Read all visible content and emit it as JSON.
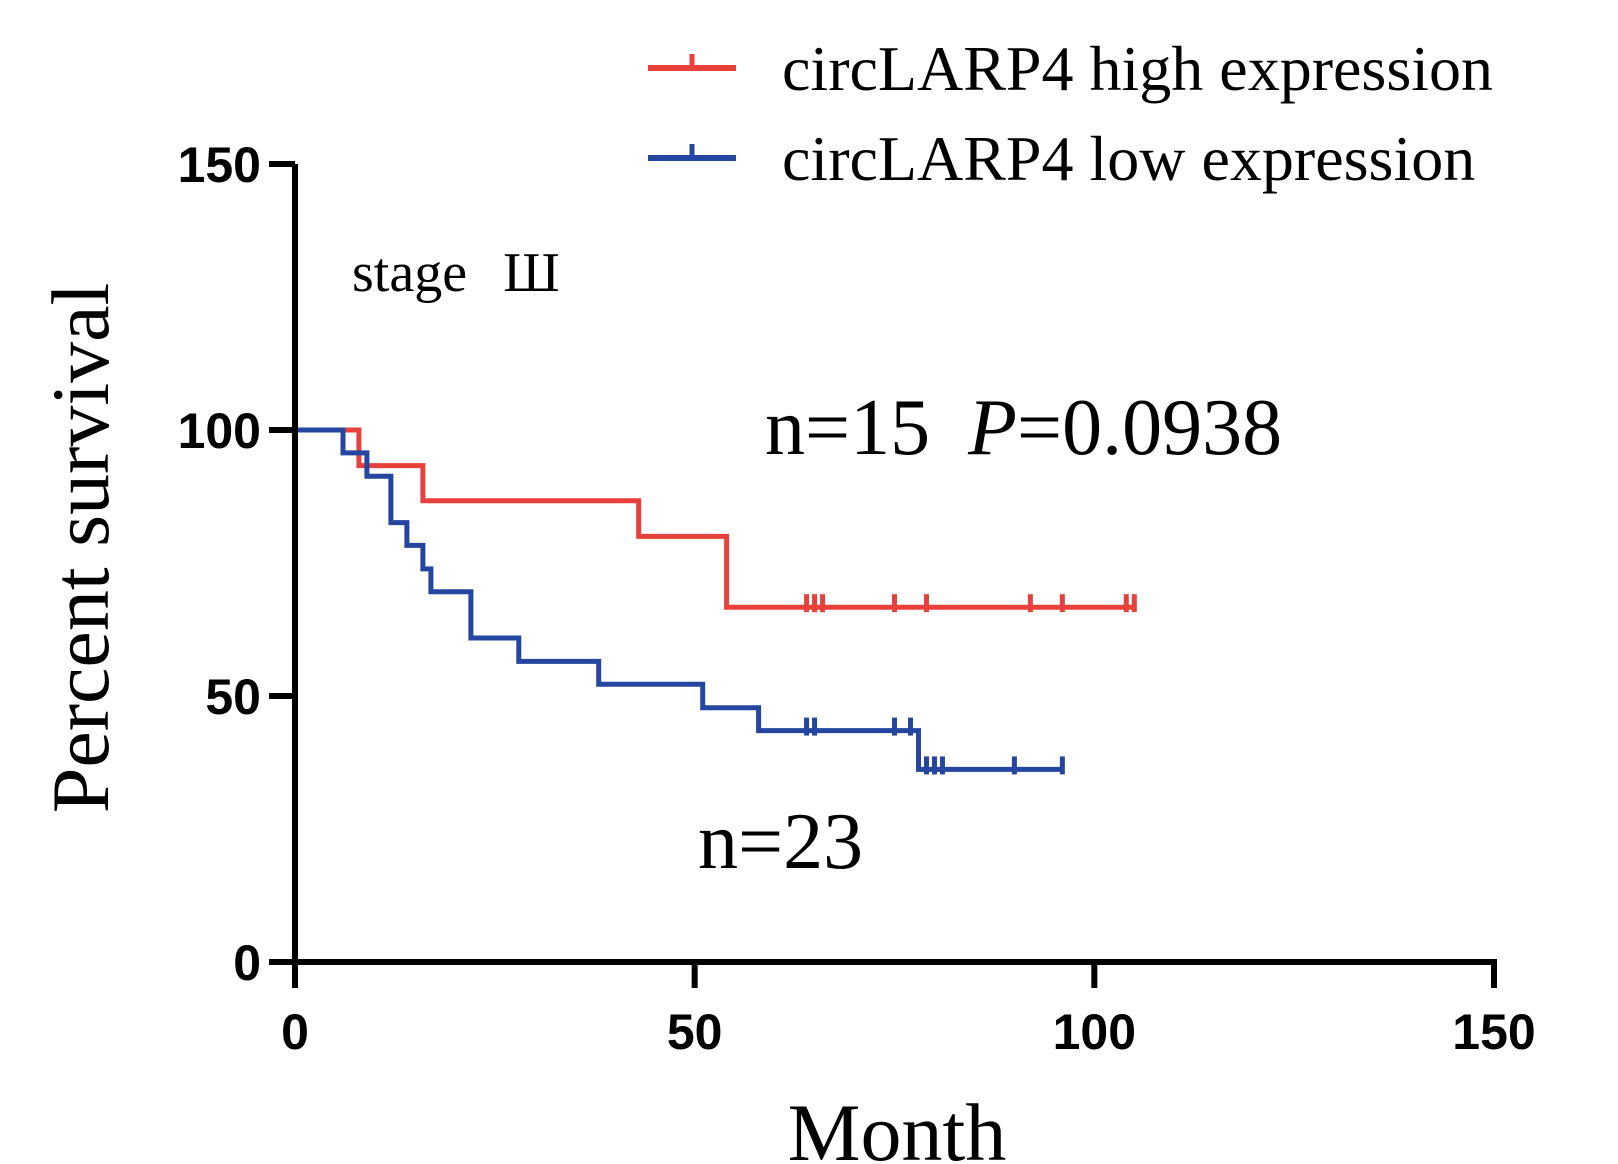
{
  "chart_data": {
    "type": "line",
    "xlabel": "Month",
    "ylabel": "Percent survival",
    "xlim": [
      0,
      150
    ],
    "ylim": [
      0,
      150
    ],
    "xticks": [
      0,
      50,
      100,
      150
    ],
    "yticks": [
      0,
      50,
      100,
      150
    ],
    "grid": false,
    "legend_position": "top-right",
    "annotations": {
      "stage": "stage",
      "stage_numeral": "Ш",
      "n_high": "n=15",
      "p_label": "P",
      "p_value": "=0.0938",
      "n_low": "n=23"
    },
    "series": [
      {
        "name": "circLARP4 high expression",
        "color": "#e8413c",
        "steps": [
          [
            0,
            100
          ],
          [
            8,
            100
          ],
          [
            8,
            93.3
          ],
          [
            16,
            93.3
          ],
          [
            16,
            86.7
          ],
          [
            43,
            86.7
          ],
          [
            43,
            80
          ],
          [
            54,
            80
          ],
          [
            54,
            66.7
          ],
          [
            105,
            66.7
          ]
        ],
        "censored": [
          [
            64,
            66.7
          ],
          [
            65,
            66.7
          ],
          [
            66,
            66.7
          ],
          [
            75,
            66.7
          ],
          [
            79,
            66.7
          ],
          [
            92,
            66.7
          ],
          [
            96,
            66.7
          ],
          [
            104,
            66.7
          ],
          [
            105,
            66.7
          ]
        ]
      },
      {
        "name": "circLARP4 low expression",
        "color": "#2445a0",
        "steps": [
          [
            0,
            100
          ],
          [
            6,
            100
          ],
          [
            6,
            95.7
          ],
          [
            9,
            95.7
          ],
          [
            9,
            91.3
          ],
          [
            12,
            91.3
          ],
          [
            12,
            82.6
          ],
          [
            14,
            82.6
          ],
          [
            14,
            78.3
          ],
          [
            16,
            78.3
          ],
          [
            16,
            73.9
          ],
          [
            17,
            73.9
          ],
          [
            17,
            69.6
          ],
          [
            22,
            69.6
          ],
          [
            22,
            60.9
          ],
          [
            28,
            60.9
          ],
          [
            28,
            56.5
          ],
          [
            38,
            56.5
          ],
          [
            38,
            52.2
          ],
          [
            51,
            52.2
          ],
          [
            51,
            47.8
          ],
          [
            58,
            47.8
          ],
          [
            58,
            43.5
          ],
          [
            78,
            43.5
          ],
          [
            78,
            36.2
          ],
          [
            96,
            36.2
          ]
        ],
        "censored": [
          [
            64,
            43.5
          ],
          [
            65,
            43.5
          ],
          [
            75,
            43.5
          ],
          [
            77,
            43.5
          ],
          [
            79,
            36.2
          ],
          [
            80,
            36.2
          ],
          [
            81,
            36.2
          ],
          [
            90,
            36.2
          ],
          [
            96,
            36.2
          ]
        ]
      }
    ]
  }
}
